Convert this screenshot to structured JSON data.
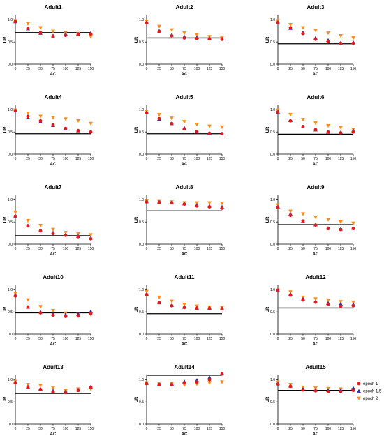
{
  "chart_data": {
    "type": "scatter",
    "xlabel": "AC",
    "ylabel": "UR",
    "xlim": [
      0,
      150
    ],
    "ylim": [
      0,
      1.1
    ],
    "x_ticks": [
      0,
      25,
      50,
      75,
      100,
      125,
      150
    ],
    "y_ticks": [
      0.0,
      0.5,
      1.0
    ],
    "x": [
      0,
      25,
      50,
      75,
      100,
      125,
      150
    ],
    "legend": {
      "placement": "right of bottom-right panel",
      "entries": [
        {
          "label": "epoch 1",
          "color": "#e31a1c",
          "marker": "circle"
        },
        {
          "label": "epoch 1.5",
          "color": "#2b2bb8",
          "marker": "triangle-up"
        },
        {
          "label": "epoch 2",
          "color": "#ff8c1a",
          "marker": "triangle-down"
        }
      ]
    },
    "panels": [
      {
        "title": "Adult1",
        "reference": 0.71,
        "series": {
          "epoch 1": [
            0.96,
            0.81,
            0.71,
            0.63,
            0.65,
            0.67,
            0.68
          ],
          "epoch 1.5": [
            0.96,
            0.8,
            0.7,
            0.64,
            0.68,
            0.68,
            0.7
          ],
          "epoch 2": [
            0.98,
            0.91,
            0.82,
            0.74,
            0.71,
            0.69,
            0.62
          ]
        }
      },
      {
        "title": "Adult2",
        "reference": 0.59,
        "series": {
          "epoch 1": [
            0.93,
            0.74,
            0.64,
            0.59,
            0.58,
            0.57,
            0.56
          ],
          "epoch 1.5": [
            0.94,
            0.75,
            0.66,
            0.62,
            0.6,
            0.58,
            0.57
          ],
          "epoch 2": [
            0.97,
            0.85,
            0.77,
            0.7,
            0.66,
            0.62,
            0.59
          ]
        }
      },
      {
        "title": "Adult3",
        "reference": 0.46,
        "series": {
          "epoch 1": [
            0.94,
            0.82,
            0.69,
            0.56,
            0.51,
            0.47,
            0.47
          ],
          "epoch 1.5": [
            0.94,
            0.81,
            0.71,
            0.59,
            0.54,
            0.48,
            0.49
          ],
          "epoch 2": [
            0.98,
            0.89,
            0.82,
            0.76,
            0.7,
            0.64,
            0.59
          ]
        }
      },
      {
        "title": "Adult4",
        "reference": 0.46,
        "series": {
          "epoch 1": [
            0.98,
            0.85,
            0.75,
            0.66,
            0.58,
            0.53,
            0.5
          ],
          "epoch 1.5": [
            0.98,
            0.83,
            0.73,
            0.65,
            0.57,
            0.53,
            0.51
          ],
          "epoch 2": [
            0.99,
            0.92,
            0.85,
            0.82,
            0.79,
            0.75,
            0.69
          ]
        }
      },
      {
        "title": "Adult5",
        "reference": 0.46,
        "series": {
          "epoch 1": [
            0.93,
            0.8,
            0.69,
            0.57,
            0.51,
            0.47,
            0.46
          ],
          "epoch 1.5": [
            0.94,
            0.79,
            0.69,
            0.59,
            0.51,
            0.47,
            0.46
          ],
          "epoch 2": [
            0.97,
            0.89,
            0.81,
            0.73,
            0.67,
            0.63,
            0.61
          ]
        }
      },
      {
        "title": "Adult6",
        "reference": 0.45,
        "series": {
          "epoch 1": [
            0.95,
            0.75,
            0.62,
            0.55,
            0.5,
            0.48,
            0.5
          ],
          "epoch 1.5": [
            0.95,
            0.76,
            0.62,
            0.55,
            0.5,
            0.49,
            0.53
          ],
          "epoch 2": [
            0.99,
            0.89,
            0.78,
            0.7,
            0.64,
            0.6,
            0.56
          ]
        }
      },
      {
        "title": "Adult7",
        "reference": 0.19,
        "series": {
          "epoch 1": [
            0.63,
            0.41,
            0.3,
            0.24,
            0.2,
            0.17,
            0.12
          ],
          "epoch 1.5": [
            0.64,
            0.42,
            0.31,
            0.26,
            0.21,
            0.18,
            0.14
          ],
          "epoch 2": [
            0.72,
            0.53,
            0.42,
            0.33,
            0.26,
            0.23,
            0.21
          ]
        }
      },
      {
        "title": "Adult8",
        "reference": 0.75,
        "series": {
          "epoch 1": [
            0.95,
            0.94,
            0.93,
            0.9,
            0.86,
            0.84,
            0.81
          ],
          "epoch 1.5": [
            0.96,
            0.95,
            0.94,
            0.91,
            0.88,
            0.86,
            0.84
          ],
          "epoch 2": [
            0.97,
            0.96,
            0.95,
            0.93,
            0.93,
            0.93,
            0.92
          ]
        }
      },
      {
        "title": "Adult9",
        "reference": 0.44,
        "series": {
          "epoch 1": [
            0.82,
            0.65,
            0.52,
            0.43,
            0.35,
            0.33,
            0.35
          ],
          "epoch 1.5": [
            0.84,
            0.68,
            0.52,
            0.44,
            0.36,
            0.34,
            0.36
          ],
          "epoch 2": [
            0.88,
            0.74,
            0.68,
            0.61,
            0.55,
            0.5,
            0.47
          ]
        }
      },
      {
        "title": "Adult10",
        "reference": 0.48,
        "series": {
          "epoch 1": [
            0.86,
            0.61,
            0.48,
            0.43,
            0.4,
            0.41,
            0.46
          ],
          "epoch 1.5": [
            0.88,
            0.61,
            0.5,
            0.45,
            0.44,
            0.45,
            0.51
          ],
          "epoch 2": [
            0.92,
            0.77,
            0.62,
            0.53,
            0.47,
            0.44,
            0.44
          ]
        }
      },
      {
        "title": "Adult11",
        "reference": 0.46,
        "series": {
          "epoch 1": [
            0.89,
            0.71,
            0.64,
            0.6,
            0.58,
            0.58,
            0.57
          ],
          "epoch 1.5": [
            0.9,
            0.71,
            0.65,
            0.61,
            0.59,
            0.59,
            0.58
          ],
          "epoch 2": [
            0.96,
            0.83,
            0.74,
            0.67,
            0.63,
            0.61,
            0.6
          ]
        }
      },
      {
        "title": "Adult12",
        "reference": 0.59,
        "series": {
          "epoch 1": [
            0.99,
            0.88,
            0.77,
            0.72,
            0.67,
            0.63,
            0.64
          ],
          "epoch 1.5": [
            0.99,
            0.9,
            0.79,
            0.73,
            0.7,
            0.68,
            0.67
          ],
          "epoch 2": [
            0.99,
            0.95,
            0.83,
            0.79,
            0.76,
            0.73,
            0.72
          ]
        }
      },
      {
        "title": "Adult13",
        "reference": 0.69,
        "series": {
          "epoch 1": [
            0.93,
            0.83,
            0.78,
            0.73,
            0.71,
            0.76,
            0.83
          ],
          "epoch 1.5": [
            0.94,
            0.84,
            0.79,
            0.75,
            0.73,
            0.77,
            0.84
          ],
          "epoch 2": [
            0.96,
            0.89,
            0.87,
            0.81,
            0.75,
            0.79,
            0.79
          ]
        }
      },
      {
        "title": "Adult14",
        "reference": 1.1,
        "series": {
          "epoch 1": [
            0.91,
            0.89,
            0.89,
            0.93,
            0.95,
            1.0,
            1.13
          ],
          "epoch 1.5": [
            0.92,
            0.9,
            0.9,
            0.96,
            0.99,
            1.05,
            1.14
          ],
          "epoch 2": [
            0.93,
            0.9,
            0.91,
            0.88,
            0.9,
            0.93,
            0.95
          ]
        }
      },
      {
        "title": "Adult15",
        "reference": 0.76,
        "series": {
          "epoch 1": [
            0.9,
            0.85,
            0.77,
            0.75,
            0.73,
            0.74,
            0.76
          ],
          "epoch 1.5": [
            0.91,
            0.86,
            0.79,
            0.77,
            0.76,
            0.77,
            0.81
          ],
          "epoch 2": [
            0.94,
            0.89,
            0.83,
            0.81,
            0.8,
            0.79,
            0.78
          ]
        }
      }
    ]
  }
}
